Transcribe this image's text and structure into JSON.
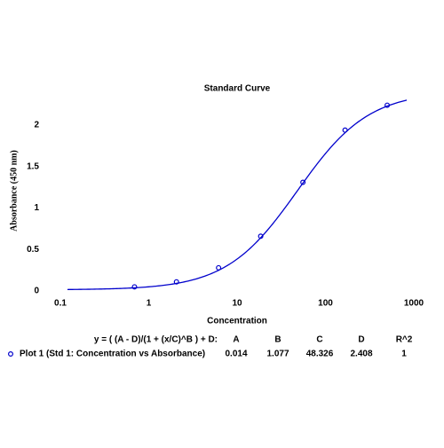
{
  "chart_data": {
    "type": "scatter",
    "title": "Standard Curve",
    "x_label": "Concentration",
    "y_label": "Absorbance (450 nm)",
    "log_x": true,
    "xlim": [
      0.1,
      1000
    ],
    "xticks": [
      0.1,
      1,
      10,
      100,
      1000
    ],
    "ylim": [
      0,
      2.3
    ],
    "yticks": [
      0,
      0.5,
      1,
      1.5,
      2
    ],
    "series": [
      {
        "name": "Plot 1 (Std 1: Concentration vs Absorbance)",
        "color": "#0000cc",
        "x": [
          0.69,
          2.06,
          6.17,
          18.5,
          55.6,
          166.7,
          500
        ],
        "values": [
          0.05,
          0.11,
          0.28,
          0.66,
          1.31,
          1.94,
          2.24
        ]
      }
    ],
    "fit": {
      "equation": "y = ( (A - D)/(1 + (x/C)^B ) + D:",
      "color": "#0000cc",
      "params": [
        {
          "name": "A",
          "value": 0.014
        },
        {
          "name": "B",
          "value": 1.077
        },
        {
          "name": "C",
          "value": 48.326
        },
        {
          "name": "D",
          "value": 2.408
        }
      ],
      "r2": {
        "name": "R^2",
        "value": 1
      }
    }
  }
}
